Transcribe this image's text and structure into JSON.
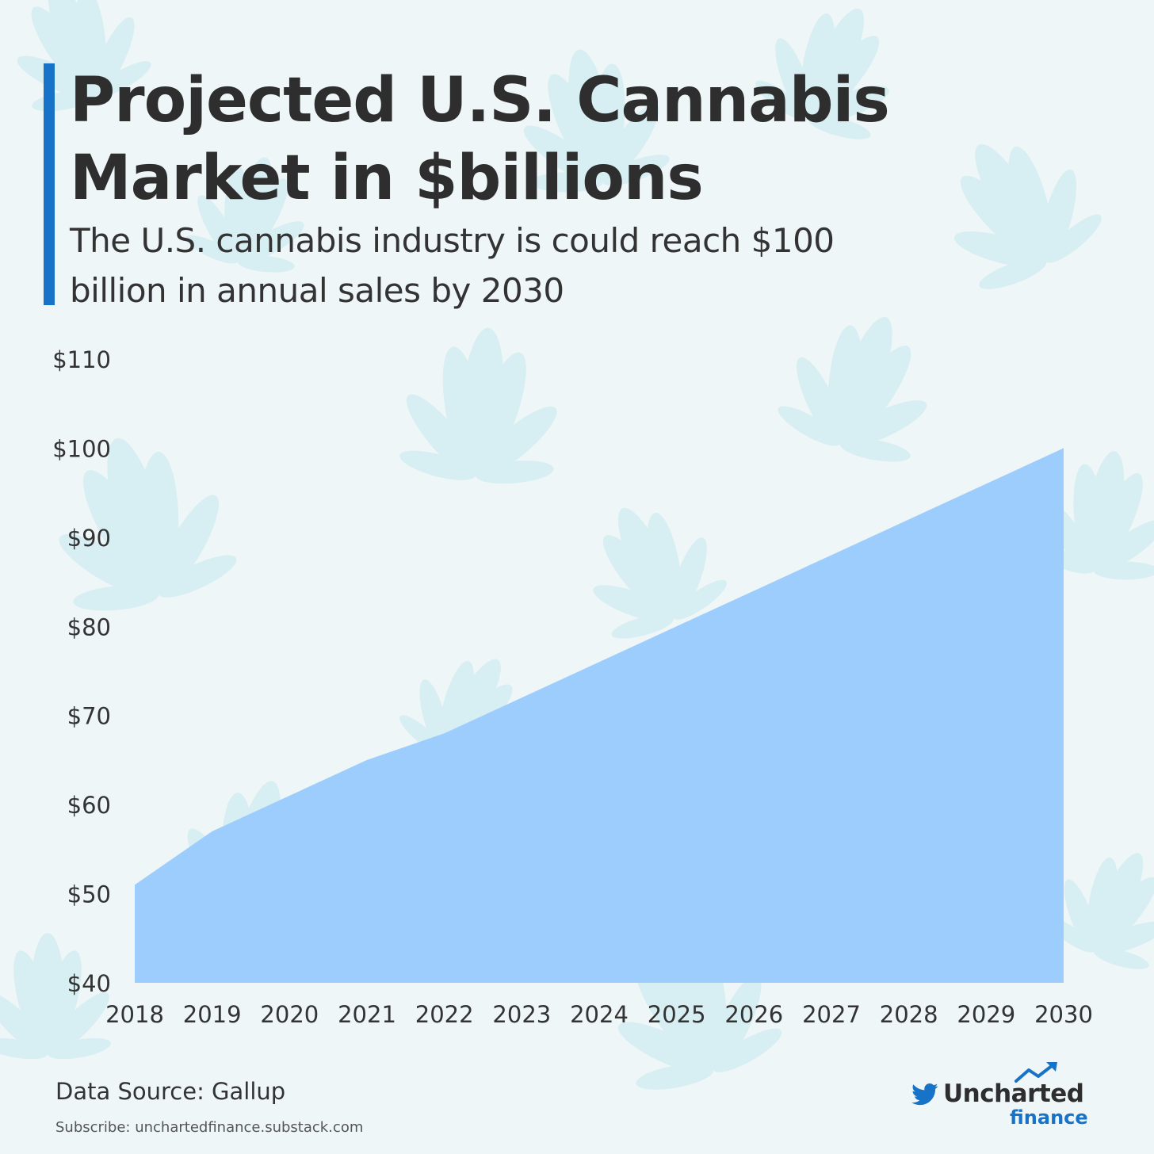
{
  "header": {
    "title": "Projected U.S. Cannabis Market in $billions",
    "subtitle": "The U.S. cannabis industry is could reach $100 billion in annual sales by 2030"
  },
  "chart_data": {
    "type": "area",
    "x": [
      2018,
      2019,
      2020,
      2021,
      2022,
      2023,
      2024,
      2025,
      2026,
      2027,
      2028,
      2029,
      2030
    ],
    "x_tick_labels": [
      "2018",
      "2019",
      "2020",
      "2021",
      "2022",
      "2023",
      "2024",
      "2025",
      "2026",
      "2027",
      "2028",
      "2029",
      "2030"
    ],
    "values": [
      51,
      57,
      61,
      65,
      68,
      72,
      76,
      80,
      84,
      88,
      92,
      96,
      100
    ],
    "ylim": [
      40,
      110
    ],
    "y_ticks": [
      40,
      50,
      60,
      70,
      80,
      90,
      100,
      110
    ],
    "y_tick_labels": [
      "$40",
      "$50",
      "$60",
      "$70",
      "$80",
      "$90",
      "$100",
      "$110"
    ],
    "grid": false,
    "legend": "none",
    "fill_color": "#9dcdfd"
  },
  "footer": {
    "source": "Data Source: Gallup",
    "subscribe": "Subscribe: unchartedfinance.substack.com",
    "brand_name": "Uncharted",
    "brand_sub": "finance"
  },
  "colors": {
    "background": "#eef6f7",
    "accent": "#1773c8",
    "leaf": "#d7eef3",
    "text": "#2e2e2e"
  },
  "icons": [
    "cannabis-leaf-icon",
    "twitter-bird-icon",
    "trend-arrow-icon"
  ]
}
